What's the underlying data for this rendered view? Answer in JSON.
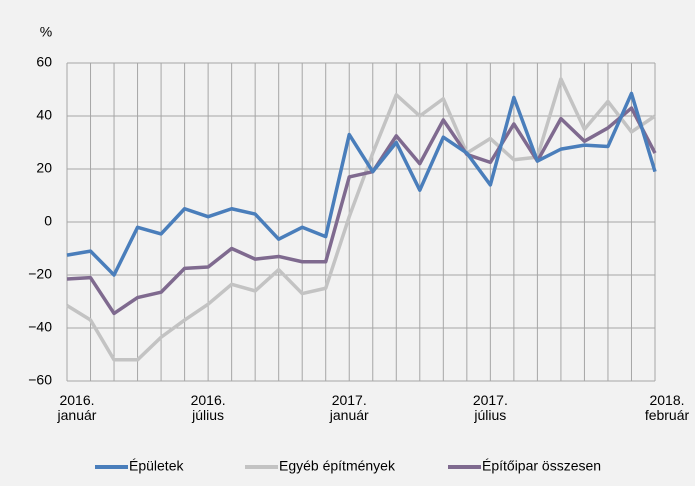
{
  "chart_data": {
    "type": "line",
    "y_label": "%",
    "categories": [
      "2016. január",
      null,
      null,
      null,
      null,
      null,
      "2016. július",
      null,
      null,
      null,
      null,
      null,
      "2017. január",
      null,
      null,
      null,
      null,
      null,
      "2017. július",
      null,
      null,
      null,
      null,
      null,
      null,
      "2018. február"
    ],
    "series": [
      {
        "name": "Épületek",
        "color": "#4a7ebb",
        "values": [
          -12.5,
          -11,
          -20,
          -2,
          -4.5,
          5,
          2,
          5,
          3,
          -6.5,
          -2,
          -5.5,
          33,
          19,
          30,
          12,
          32,
          26,
          14,
          47,
          23,
          27.5,
          29,
          28.5,
          48.5,
          19
        ]
      },
      {
        "name": "Egyéb építmények",
        "color": "#c3c3c3",
        "values": [
          -31.5,
          -37,
          -52,
          -52,
          -43.5,
          -37,
          -31,
          -23.5,
          -26,
          -18,
          -27,
          -25,
          2,
          26,
          48,
          40,
          46.5,
          26,
          31.5,
          23.5,
          24.5,
          54,
          35,
          45.5,
          34,
          40
        ]
      },
      {
        "name": "Építőipar összesen",
        "color": "#7f6a8f",
        "values": [
          -21.5,
          -21,
          -34.5,
          -28.5,
          -26.5,
          -17.5,
          -17,
          -10,
          -14,
          -13,
          -15,
          -15,
          17,
          19,
          32.5,
          22,
          38.5,
          25.5,
          22.5,
          37,
          23,
          39,
          30.5,
          35.5,
          43,
          26
        ]
      }
    ],
    "ylim": [
      -60,
      60
    ],
    "yticks": [
      {
        "value": -60,
        "label": "−60"
      },
      {
        "value": -40,
        "label": "−40"
      },
      {
        "value": -20,
        "label": "−20"
      },
      0,
      20,
      40,
      60
    ],
    "grid": true
  }
}
